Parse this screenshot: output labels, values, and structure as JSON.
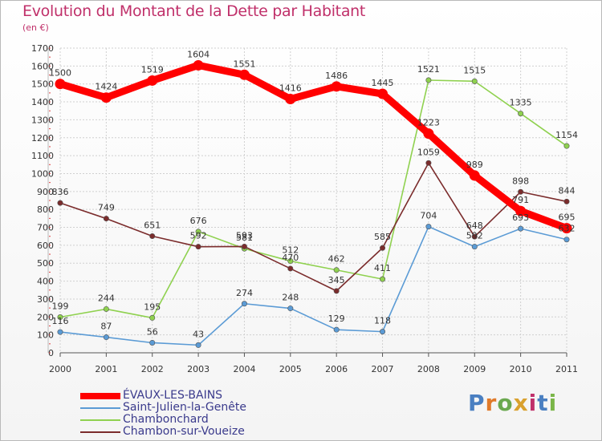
{
  "title": "Evolution du Montant de la Dette par Habitant",
  "unit_label": "(en €)",
  "logo": {
    "text": "Proxiti",
    "colors": [
      "#4a7fc1",
      "#e07a2a",
      "#6aa84f",
      "#d9a12e",
      "#c0306a",
      "#4a7fc1",
      "#7ab648"
    ]
  },
  "chart_data": {
    "type": "line",
    "x": [
      "2000",
      "2001",
      "2002",
      "2003",
      "2004",
      "2005",
      "2006",
      "2007",
      "2008",
      "2009",
      "2010",
      "2011"
    ],
    "ylim": [
      0,
      1700
    ],
    "yticks": [
      0,
      100,
      200,
      300,
      400,
      500,
      600,
      700,
      800,
      900,
      1000,
      1100,
      1200,
      1300,
      1400,
      1500,
      1600,
      1700
    ],
    "grid": true,
    "legend_position": "bottom-left",
    "series": [
      {
        "name": "ÉVAUX-LES-BAINS",
        "color": "#ff0000",
        "values": [
          1500,
          1424,
          1519,
          1604,
          1551,
          1416,
          1486,
          1445,
          1223,
          989,
          791,
          695
        ],
        "labels": [
          "1500",
          "1424",
          "1519",
          "1604",
          "1551",
          "1416",
          "1486",
          "1445",
          "1223",
          "989",
          "791",
          "695"
        ]
      },
      {
        "name": "Saint-Julien-la-Genête",
        "color": "#5b9bd5",
        "values": [
          116,
          87,
          56,
          43,
          274,
          248,
          129,
          118,
          704,
          592,
          693,
          632
        ],
        "labels": [
          "116",
          "87",
          "56",
          "43",
          "274",
          "248",
          "129",
          "118",
          "704",
          "592",
          "693",
          "632"
        ]
      },
      {
        "name": "Chambonchard",
        "color": "#8fd14f",
        "values": [
          199,
          244,
          195,
          676,
          581,
          512,
          462,
          411,
          1521,
          1515,
          1335,
          1154
        ],
        "labels": [
          "199",
          "244",
          "195",
          "676",
          "581",
          "512",
          "462",
          "411",
          "1521",
          "1515",
          "1335",
          "1154"
        ]
      },
      {
        "name": "Chambon-sur-Voueize",
        "color": "#7b2c2c",
        "values": [
          836,
          749,
          651,
          592,
          593,
          470,
          345,
          585,
          1059,
          648,
          898,
          844
        ],
        "labels": [
          "836",
          "749",
          "651",
          "592",
          "593",
          "470",
          "345",
          "585",
          "1059",
          "648",
          "898",
          "844"
        ]
      }
    ]
  }
}
